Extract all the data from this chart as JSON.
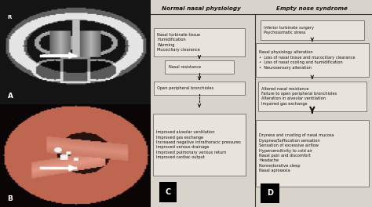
{
  "title_left": "Normal nasal physiology",
  "title_right": "Empty nose syndrome",
  "bg_color": "#d8d4cb",
  "box_facecolor": "#e8e4db",
  "box_edgecolor": "#555555",
  "text_color": "#111111",
  "label_C": "C",
  "label_D": "D",
  "label_A": "A",
  "label_B": "B"
}
